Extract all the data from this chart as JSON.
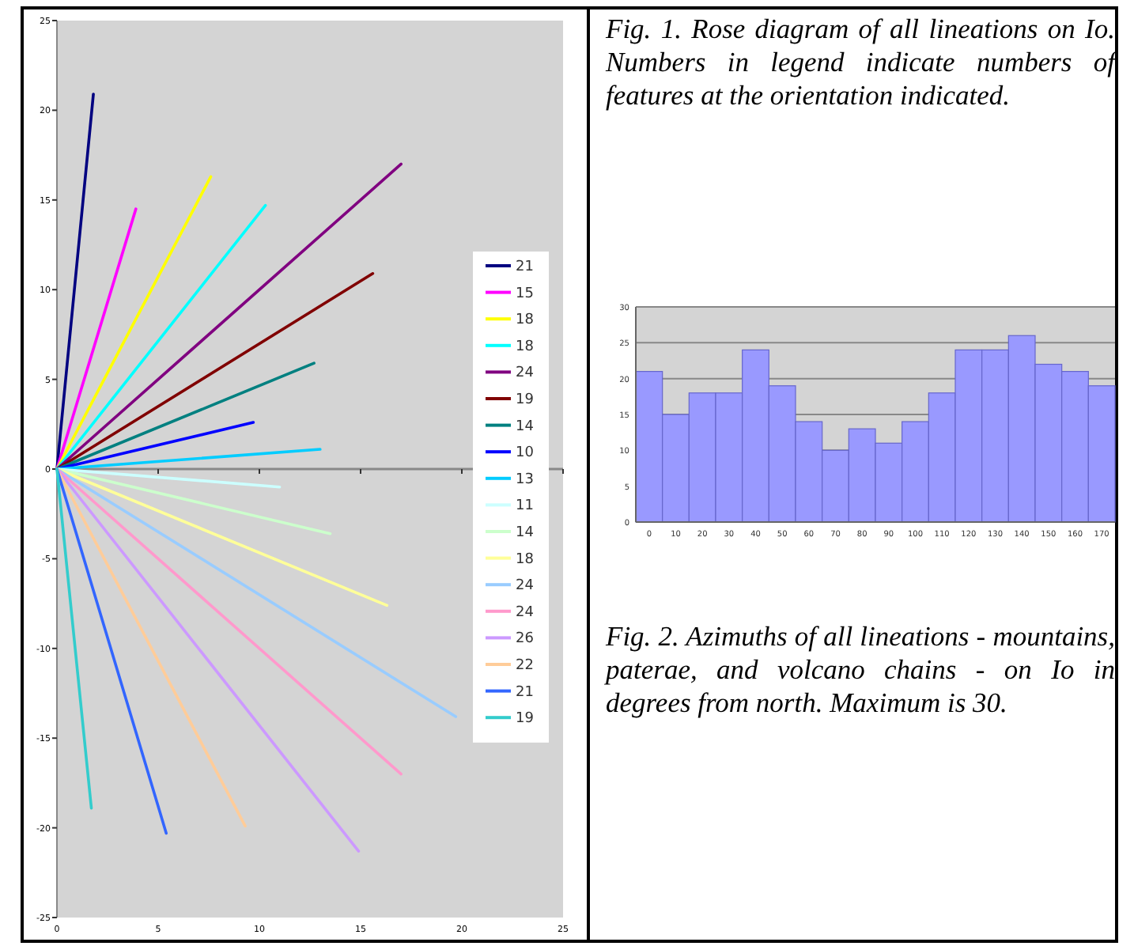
{
  "chart_data": [
    {
      "type": "line",
      "annotations": [
        "Fig. 1. Rose diagram of all lineations on Io. Numbers in legend indicate numbers of features at the orientation indicated."
      ],
      "xlim": [
        0,
        25
      ],
      "ylim": [
        -25,
        25
      ],
      "xticks": [
        0,
        5,
        10,
        15,
        20,
        25
      ],
      "yticks": [
        -25,
        -20,
        -15,
        -10,
        -5,
        0,
        5,
        10,
        15,
        20,
        25
      ],
      "legend": "right",
      "marker": "none",
      "line_style": "solid",
      "series": [
        {
          "name": "21",
          "color": "#000080",
          "x": [
            0,
            1.8
          ],
          "values": [
            0,
            20.9
          ]
        },
        {
          "name": "15",
          "color": "#ff00ff",
          "x": [
            0,
            3.9
          ],
          "values": [
            0,
            14.5
          ]
        },
        {
          "name": "18",
          "color": "#ffff00",
          "x": [
            0,
            7.6
          ],
          "values": [
            0,
            16.3
          ]
        },
        {
          "name": "18",
          "color": "#00ffff",
          "x": [
            0,
            10.3
          ],
          "values": [
            0,
            14.7
          ]
        },
        {
          "name": "24",
          "color": "#800080",
          "x": [
            0,
            17.0
          ],
          "values": [
            0,
            17.0
          ]
        },
        {
          "name": "19",
          "color": "#800000",
          "x": [
            0,
            15.6
          ],
          "values": [
            0,
            10.9
          ]
        },
        {
          "name": "14",
          "color": "#008080",
          "x": [
            0,
            12.7
          ],
          "values": [
            0,
            5.9
          ]
        },
        {
          "name": "10",
          "color": "#0000ff",
          "x": [
            0,
            9.7
          ],
          "values": [
            0,
            2.6
          ]
        },
        {
          "name": "13",
          "color": "#00ccff",
          "x": [
            0,
            13.0
          ],
          "values": [
            0,
            1.1
          ]
        },
        {
          "name": "11",
          "color": "#ccffff",
          "x": [
            0,
            11.0
          ],
          "values": [
            0,
            -1.0
          ]
        },
        {
          "name": "14",
          "color": "#ccffcc",
          "x": [
            0,
            13.5
          ],
          "values": [
            0,
            -3.6
          ]
        },
        {
          "name": "18",
          "color": "#ffff99",
          "x": [
            0,
            16.3
          ],
          "values": [
            0,
            -7.6
          ]
        },
        {
          "name": "24",
          "color": "#99ccff",
          "x": [
            0,
            19.7
          ],
          "values": [
            0,
            -13.8
          ]
        },
        {
          "name": "24",
          "color": "#ff99cc",
          "x": [
            0,
            17.0
          ],
          "values": [
            0,
            -17.0
          ]
        },
        {
          "name": "26",
          "color": "#cc99ff",
          "x": [
            0,
            14.9
          ],
          "values": [
            0,
            -21.3
          ]
        },
        {
          "name": "22",
          "color": "#ffcc99",
          "x": [
            0,
            9.3
          ],
          "values": [
            0,
            -19.9
          ]
        },
        {
          "name": "21",
          "color": "#3366ff",
          "x": [
            0,
            5.4
          ],
          "values": [
            0,
            -20.3
          ]
        },
        {
          "name": "19",
          "color": "#33cccc",
          "x": [
            0,
            1.7
          ],
          "values": [
            0,
            -18.9
          ]
        }
      ]
    },
    {
      "type": "bar",
      "annotations": [
        "Fig. 2. Azimuths of all lineations - mountains, paterae, and volcano chains - on Io in degrees from north. Maximum is 30."
      ],
      "categories": [
        "0",
        "10",
        "20",
        "30",
        "40",
        "50",
        "60",
        "70",
        "80",
        "90",
        "100",
        "110",
        "120",
        "130",
        "140",
        "150",
        "160",
        "170"
      ],
      "values": [
        21,
        15,
        18,
        18,
        24,
        19,
        14,
        10,
        13,
        11,
        14,
        18,
        24,
        24,
        26,
        22,
        21,
        19
      ],
      "color": "#9999ff",
      "ylim": [
        0,
        30
      ],
      "yticks": [
        0,
        5,
        10,
        15,
        20,
        25,
        30
      ],
      "grid": "y"
    }
  ]
}
